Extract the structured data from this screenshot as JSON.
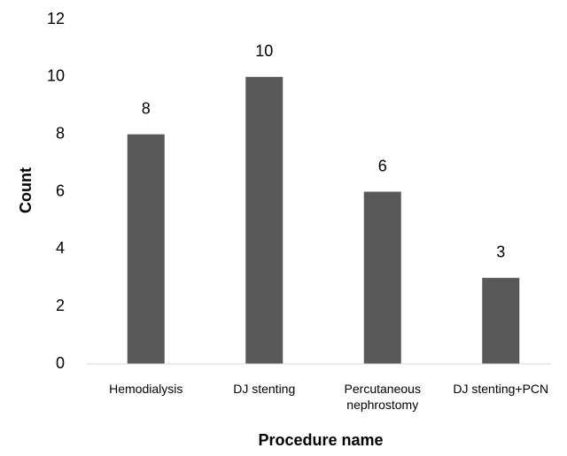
{
  "chart_data": {
    "type": "bar",
    "categories": [
      "Hemodialysis",
      "DJ stenting",
      "Percutaneous nephrostomy",
      "DJ stenting+PCN"
    ],
    "values": [
      8,
      10,
      6,
      3
    ],
    "color": "#595959",
    "ylim": [
      0,
      12
    ],
    "yticks": [
      0,
      2,
      4,
      6,
      8,
      10,
      12
    ],
    "x_label": "Procedure name",
    "y_label": "Count",
    "grid": false
  }
}
